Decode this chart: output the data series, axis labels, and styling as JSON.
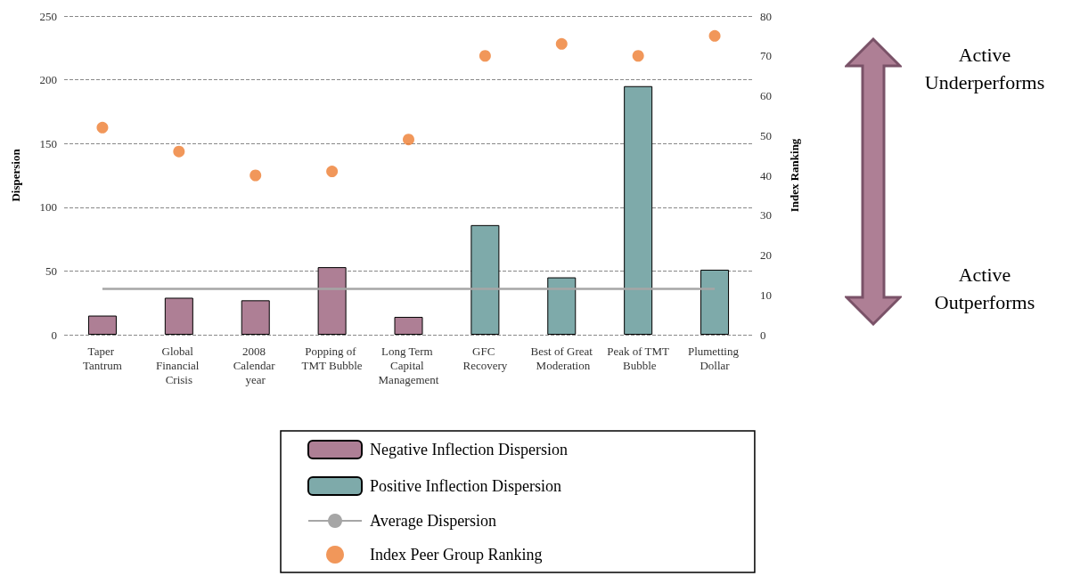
{
  "chart_data": {
    "type": "bar",
    "ylabel": "Dispersion",
    "y2label": "Index Ranking",
    "categories": [
      "Taper Tantrum",
      "Global Financial Crisis",
      "2008 Calendar year",
      "Popping of TMT Bubble",
      "Long Term Capital Management",
      "GFC Recovery",
      "Best of Great Moderation",
      "Peak of TMT Bubble",
      "Plumetting Dollar"
    ],
    "stacked": true,
    "series": [
      {
        "name": "Negative Inflection Dispersion",
        "color": "#ae7f95",
        "values": [
          15,
          29,
          27,
          53,
          14,
          null,
          null,
          null,
          null
        ]
      },
      {
        "name": "Positive Inflection Dispersion",
        "color": "#7eaaaa",
        "values": [
          null,
          null,
          null,
          null,
          null,
          86,
          45,
          195,
          51
        ]
      },
      {
        "name": "Average Dispersion",
        "type": "line",
        "marker": "none",
        "color": "#a6a6a6",
        "values": [
          36,
          36,
          36,
          36,
          36,
          36,
          36,
          36,
          36
        ]
      },
      {
        "name": "Index Peer Group Ranking",
        "type": "scatter",
        "axis": "y2",
        "color": "#ed7d31",
        "values": [
          52,
          46,
          40,
          41,
          49,
          70,
          73,
          70,
          75
        ]
      }
    ],
    "ylim": [
      0,
      250
    ],
    "yticks": [
      0,
      50,
      100,
      150,
      200,
      250
    ],
    "y2lim": [
      0,
      80
    ],
    "y2ticks": [
      0,
      10,
      20,
      30,
      40,
      50,
      60,
      70,
      80
    ],
    "grid": "y",
    "legend": "bottom",
    "marker": "circle",
    "annotations": [
      "Active Underperforms",
      "Active Outperforms"
    ]
  }
}
